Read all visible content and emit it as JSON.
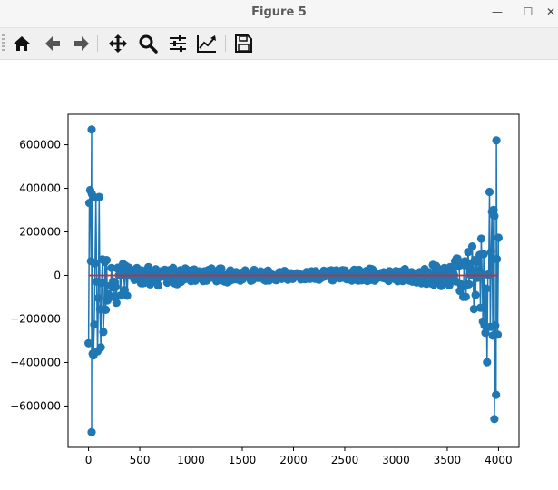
{
  "window": {
    "title": "Figure 5",
    "minimize_glyph": "—",
    "maximize_glyph": "☐",
    "close_glyph": "✕"
  },
  "toolbar": {
    "buttons": [
      {
        "name": "home-icon",
        "tooltip": "Reset original view"
      },
      {
        "name": "back-arrow-icon",
        "tooltip": "Back to previous view"
      },
      {
        "name": "forward-arrow-icon",
        "tooltip": "Forward to next view"
      },
      {
        "name": "pan-move-icon",
        "tooltip": "Pan axes"
      },
      {
        "name": "zoom-magnifier-icon",
        "tooltip": "Zoom to rectangle"
      },
      {
        "name": "configure-subplots-icon",
        "tooltip": "Configure subplots"
      },
      {
        "name": "edit-axis-icon",
        "tooltip": "Edit axis"
      },
      {
        "name": "save-floppy-icon",
        "tooltip": "Save the figure"
      }
    ]
  },
  "colors": {
    "series": "#1f77b4",
    "baseline": "#d62728",
    "axes": "#000000"
  },
  "chart_data": {
    "type": "line",
    "marker": "circle",
    "title": "",
    "xlabel": "",
    "ylabel": "",
    "xlim": [
      -200,
      4200
    ],
    "ylim": [
      -790000,
      740000
    ],
    "xticks": [
      0,
      500,
      1000,
      1500,
      2000,
      2500,
      3000,
      3500,
      4000
    ],
    "yticks": [
      -600000,
      -400000,
      -200000,
      0,
      200000,
      400000,
      600000
    ],
    "n_points": 4000,
    "series": [
      {
        "style": "line-with-circle-markers",
        "color": "#1f77b4",
        "envelope": {
          "x": [
            0,
            20,
            30,
            60,
            100,
            150,
            200,
            300,
            400,
            500,
            700,
            1000,
            1500,
            2000,
            2500,
            3000,
            3300,
            3500,
            3600,
            3700,
            3800,
            3850,
            3900,
            3950,
            3980,
            4000
          ],
          "upper": [
            560000,
            670000,
            600000,
            430000,
            420000,
            200000,
            120000,
            60000,
            60000,
            40000,
            40000,
            35000,
            30000,
            20000,
            25000,
            40000,
            50000,
            60000,
            80000,
            110000,
            180000,
            300000,
            400000,
            530000,
            560000,
            620000
          ],
          "lower": [
            -540000,
            -720000,
            -580000,
            -440000,
            -560000,
            -230000,
            -160000,
            -170000,
            -70000,
            -60000,
            -50000,
            -35000,
            -30000,
            -20000,
            -25000,
            -30000,
            -40000,
            -60000,
            -90000,
            -120000,
            -200000,
            -360000,
            -560000,
            -660000,
            -600000,
            -540000
          ]
        },
        "extreme_points": [
          {
            "x": 30,
            "y": 670000
          },
          {
            "x": 30,
            "y": -720000
          },
          {
            "x": 3980,
            "y": 620000
          },
          {
            "x": 3960,
            "y": -660000
          }
        ]
      },
      {
        "style": "line",
        "color": "#d62728",
        "x": [
          0,
          4000
        ],
        "values": [
          0,
          0
        ]
      }
    ]
  }
}
